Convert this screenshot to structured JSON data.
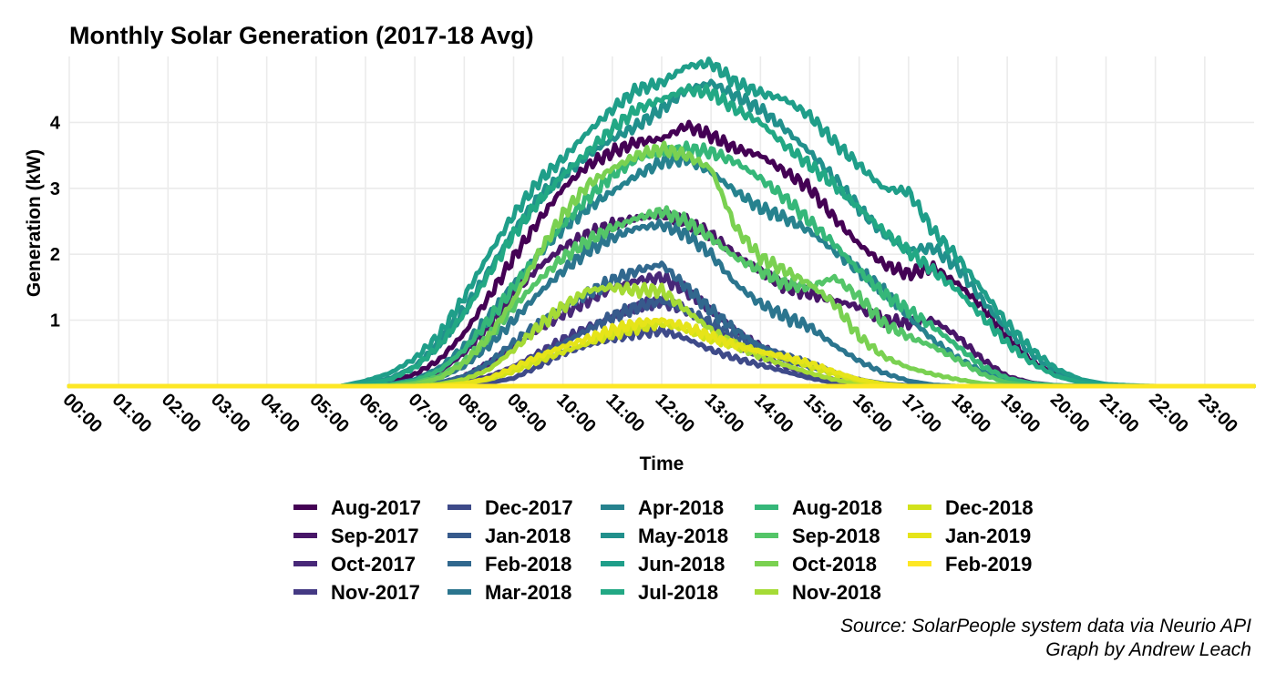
{
  "chart_data": {
    "type": "line",
    "title": "Monthly Solar Generation (2017-18 Avg)",
    "xlabel": "Time",
    "ylabel": "Generation (kW)",
    "ylim": [
      0,
      5
    ],
    "y_ticks": [
      1,
      2,
      3,
      4
    ],
    "x_ticks": [
      "00:00",
      "01:00",
      "02:00",
      "03:00",
      "04:00",
      "05:00",
      "06:00",
      "07:00",
      "08:00",
      "09:00",
      "10:00",
      "11:00",
      "12:00",
      "13:00",
      "14:00",
      "15:00",
      "16:00",
      "17:00",
      "18:00",
      "19:00",
      "20:00",
      "21:00",
      "22:00",
      "23:00"
    ],
    "x_range_hours": [
      0,
      24
    ],
    "grid": true,
    "legend_position": "bottom",
    "caption": [
      "Source: SolarPeople system data via Neurio API",
      "Graph by Andrew Leach"
    ],
    "x": [
      0,
      1,
      2,
      3,
      4,
      5,
      5.5,
      6,
      6.5,
      7,
      7.5,
      8,
      8.5,
      9,
      9.5,
      10,
      10.5,
      11,
      11.5,
      12,
      12.5,
      13,
      13.5,
      14,
      14.5,
      15,
      15.5,
      16,
      16.5,
      17,
      17.5,
      18,
      18.5,
      19,
      19.5,
      20,
      20.5,
      21,
      21.5,
      22,
      23,
      23.99
    ],
    "series": [
      {
        "name": "Aug-2017",
        "color": "#440154",
        "values": [
          0,
          0,
          0,
          0,
          0,
          0,
          0,
          0.02,
          0.06,
          0.18,
          0.4,
          0.8,
          1.35,
          1.95,
          2.5,
          3.0,
          3.35,
          3.55,
          3.7,
          3.75,
          3.95,
          3.8,
          3.6,
          3.5,
          3.25,
          3.0,
          2.55,
          2.15,
          1.85,
          1.7,
          1.8,
          1.55,
          1.2,
          0.75,
          0.38,
          0.17,
          0.06,
          0.02,
          0,
          0,
          0,
          0
        ]
      },
      {
        "name": "Sep-2017",
        "color": "#481668",
        "values": [
          0,
          0,
          0,
          0,
          0,
          0,
          0,
          0,
          0.02,
          0.08,
          0.22,
          0.5,
          0.9,
          1.4,
          1.8,
          2.1,
          2.3,
          2.45,
          2.55,
          2.6,
          2.5,
          2.3,
          2.0,
          1.75,
          1.5,
          1.4,
          1.3,
          1.2,
          1.0,
          0.95,
          1.0,
          0.75,
          0.4,
          0.15,
          0.05,
          0.01,
          0,
          0,
          0,
          0,
          0,
          0
        ]
      },
      {
        "name": "Oct-2017",
        "color": "#482878",
        "values": [
          0,
          0,
          0,
          0,
          0,
          0,
          0,
          0,
          0,
          0.02,
          0.05,
          0.15,
          0.35,
          0.6,
          0.85,
          1.1,
          1.3,
          1.5,
          1.6,
          1.65,
          1.45,
          1.15,
          0.85,
          0.6,
          0.42,
          0.3,
          0.2,
          0.1,
          0.03,
          0.01,
          0,
          0,
          0,
          0,
          0,
          0,
          0,
          0,
          0,
          0,
          0,
          0
        ]
      },
      {
        "name": "Nov-2017",
        "color": "#443983",
        "values": [
          0,
          0,
          0,
          0,
          0,
          0,
          0,
          0,
          0,
          0,
          0.02,
          0.06,
          0.15,
          0.3,
          0.5,
          0.7,
          0.88,
          1.05,
          1.2,
          1.3,
          1.15,
          0.9,
          0.65,
          0.45,
          0.3,
          0.18,
          0.1,
          0.05,
          0.01,
          0,
          0,
          0,
          0,
          0,
          0,
          0,
          0,
          0,
          0,
          0,
          0,
          0
        ]
      },
      {
        "name": "Dec-2017",
        "color": "#3E4A89",
        "values": [
          0,
          0,
          0,
          0,
          0,
          0,
          0,
          0,
          0,
          0,
          0,
          0.02,
          0.05,
          0.12,
          0.3,
          0.5,
          0.62,
          0.72,
          0.8,
          0.85,
          0.72,
          0.55,
          0.42,
          0.32,
          0.22,
          0.12,
          0.05,
          0.01,
          0,
          0,
          0,
          0,
          0,
          0,
          0,
          0,
          0,
          0,
          0,
          0,
          0,
          0
        ]
      },
      {
        "name": "Jan-2018",
        "color": "#375A8C",
        "values": [
          0,
          0,
          0,
          0,
          0,
          0,
          0,
          0,
          0,
          0,
          0.02,
          0.05,
          0.12,
          0.25,
          0.45,
          0.65,
          0.85,
          1.05,
          1.2,
          1.3,
          1.15,
          0.95,
          0.75,
          0.6,
          0.48,
          0.35,
          0.2,
          0.1,
          0.03,
          0.01,
          0,
          0,
          0,
          0,
          0,
          0,
          0,
          0,
          0,
          0,
          0,
          0
        ]
      },
      {
        "name": "Feb-2018",
        "color": "#31688E",
        "values": [
          0,
          0,
          0,
          0,
          0,
          0,
          0,
          0,
          0,
          0.02,
          0.05,
          0.15,
          0.35,
          0.65,
          0.95,
          1.2,
          1.4,
          1.6,
          1.75,
          1.85,
          1.5,
          1.15,
          0.85,
          0.6,
          0.42,
          0.3,
          0.2,
          0.1,
          0.04,
          0.01,
          0,
          0,
          0,
          0,
          0,
          0,
          0,
          0,
          0,
          0,
          0,
          0
        ]
      },
      {
        "name": "Mar-2018",
        "color": "#2B758E",
        "values": [
          0,
          0,
          0,
          0,
          0,
          0,
          0,
          0,
          0.01,
          0.04,
          0.12,
          0.3,
          0.62,
          1.0,
          1.4,
          1.75,
          2.05,
          2.25,
          2.4,
          2.45,
          2.3,
          2.0,
          1.55,
          1.25,
          1.05,
          0.9,
          0.62,
          0.38,
          0.2,
          0.08,
          0.02,
          0,
          0,
          0,
          0,
          0,
          0,
          0,
          0,
          0,
          0,
          0
        ]
      },
      {
        "name": "Apr-2018",
        "color": "#26828E",
        "values": [
          0,
          0,
          0,
          0,
          0,
          0,
          0,
          0.01,
          0.03,
          0.1,
          0.28,
          0.6,
          1.05,
          1.55,
          2.0,
          2.4,
          2.7,
          2.95,
          3.2,
          3.4,
          3.45,
          3.25,
          2.95,
          2.7,
          2.55,
          2.35,
          2.05,
          1.75,
          1.45,
          1.05,
          0.7,
          0.42,
          0.22,
          0.1,
          0.03,
          0.01,
          0,
          0,
          0,
          0,
          0,
          0
        ]
      },
      {
        "name": "May-2018",
        "color": "#21908C",
        "values": [
          0,
          0,
          0,
          0,
          0,
          0,
          0,
          0.04,
          0.12,
          0.3,
          0.65,
          1.15,
          1.75,
          2.35,
          2.85,
          3.2,
          3.5,
          3.75,
          3.95,
          4.2,
          4.5,
          4.6,
          4.4,
          4.2,
          3.9,
          3.55,
          3.15,
          2.7,
          2.3,
          2.05,
          2.1,
          1.8,
          1.3,
          0.85,
          0.48,
          0.22,
          0.08,
          0.02,
          0,
          0,
          0,
          0
        ]
      },
      {
        "name": "Jun-2018",
        "color": "#1F9E89",
        "values": [
          0,
          0,
          0,
          0,
          0,
          0,
          0,
          0.08,
          0.2,
          0.42,
          0.78,
          1.35,
          2.0,
          2.6,
          3.1,
          3.45,
          3.85,
          4.2,
          4.5,
          4.6,
          4.85,
          4.9,
          4.6,
          4.45,
          4.35,
          4.1,
          3.7,
          3.35,
          3.0,
          2.95,
          2.35,
          1.95,
          1.45,
          0.95,
          0.55,
          0.26,
          0.1,
          0.03,
          0.01,
          0,
          0,
          0
        ]
      },
      {
        "name": "Jul-2018",
        "color": "#22A884",
        "values": [
          0,
          0,
          0,
          0,
          0,
          0,
          0,
          0.03,
          0.1,
          0.28,
          0.62,
          1.1,
          1.7,
          2.3,
          2.8,
          3.2,
          3.55,
          3.9,
          4.2,
          4.35,
          4.5,
          4.45,
          4.2,
          4.0,
          3.65,
          3.35,
          3.05,
          2.7,
          2.35,
          2.05,
          1.75,
          1.45,
          1.05,
          0.65,
          0.35,
          0.15,
          0.05,
          0.01,
          0,
          0,
          0,
          0
        ]
      },
      {
        "name": "Aug-2018",
        "color": "#35B779",
        "values": [
          0,
          0,
          0,
          0,
          0,
          0,
          0,
          0,
          0.02,
          0.08,
          0.24,
          0.55,
          1.0,
          1.5,
          2.0,
          2.45,
          2.85,
          3.2,
          3.45,
          3.55,
          3.6,
          3.55,
          3.4,
          3.15,
          2.85,
          2.5,
          2.15,
          1.75,
          1.4,
          1.15,
          0.9,
          0.6,
          0.3,
          0.12,
          0.04,
          0.01,
          0,
          0,
          0,
          0,
          0,
          0
        ]
      },
      {
        "name": "Sep-2018",
        "color": "#54C568",
        "values": [
          0,
          0,
          0,
          0,
          0,
          0,
          0,
          0,
          0.01,
          0.05,
          0.15,
          0.38,
          0.75,
          1.2,
          1.6,
          1.95,
          2.2,
          2.4,
          2.55,
          2.65,
          2.5,
          2.25,
          1.95,
          1.75,
          1.55,
          1.5,
          1.65,
          1.35,
          0.95,
          0.75,
          0.6,
          0.4,
          0.18,
          0.05,
          0.01,
          0,
          0,
          0,
          0,
          0,
          0,
          0
        ]
      },
      {
        "name": "Oct-2018",
        "color": "#7AD151",
        "values": [
          0,
          0,
          0,
          0,
          0,
          0,
          0,
          0,
          0,
          0.03,
          0.12,
          0.35,
          0.75,
          1.3,
          2.0,
          2.6,
          3.05,
          3.3,
          3.5,
          3.6,
          3.5,
          3.3,
          2.4,
          1.95,
          1.75,
          1.55,
          1.25,
          0.75,
          0.45,
          0.28,
          0.18,
          0.1,
          0.04,
          0.01,
          0,
          0,
          0,
          0,
          0,
          0,
          0,
          0
        ]
      },
      {
        "name": "Nov-2018",
        "color": "#A5DB36",
        "values": [
          0,
          0,
          0,
          0,
          0,
          0,
          0,
          0,
          0,
          0,
          0.03,
          0.1,
          0.25,
          0.55,
          0.9,
          1.2,
          1.45,
          1.5,
          1.45,
          1.45,
          1.15,
          0.85,
          0.62,
          0.45,
          0.32,
          0.2,
          0.1,
          0.04,
          0.01,
          0,
          0,
          0,
          0,
          0,
          0,
          0,
          0,
          0,
          0,
          0,
          0,
          0
        ]
      },
      {
        "name": "Dec-2018",
        "color": "#D2E21B",
        "values": [
          0,
          0,
          0,
          0,
          0,
          0,
          0,
          0,
          0,
          0,
          0.01,
          0.04,
          0.1,
          0.22,
          0.38,
          0.52,
          0.65,
          0.78,
          0.88,
          0.95,
          0.85,
          0.72,
          0.62,
          0.52,
          0.42,
          0.3,
          0.18,
          0.08,
          0.02,
          0,
          0,
          0,
          0,
          0,
          0,
          0,
          0,
          0,
          0,
          0,
          0,
          0
        ]
      },
      {
        "name": "Jan-2019",
        "color": "#E6E419",
        "values": [
          0,
          0,
          0,
          0,
          0,
          0,
          0,
          0,
          0,
          0,
          0.01,
          0.04,
          0.12,
          0.28,
          0.45,
          0.6,
          0.72,
          0.85,
          0.95,
          1.0,
          0.9,
          0.75,
          0.62,
          0.52,
          0.45,
          0.35,
          0.22,
          0.1,
          0.03,
          0,
          0,
          0,
          0,
          0,
          0,
          0,
          0,
          0,
          0,
          0,
          0,
          0
        ]
      },
      {
        "name": "Feb-2019",
        "color": "#FDE725",
        "values": [
          0,
          0,
          0,
          0,
          0,
          0,
          0,
          0,
          0,
          0,
          0,
          0,
          0,
          0,
          0,
          0,
          0,
          0,
          0,
          0,
          0,
          0,
          0,
          0,
          0,
          0,
          0,
          0,
          0,
          0,
          0,
          0,
          0,
          0,
          0,
          0,
          0,
          0,
          0,
          0,
          0,
          0
        ]
      }
    ]
  }
}
